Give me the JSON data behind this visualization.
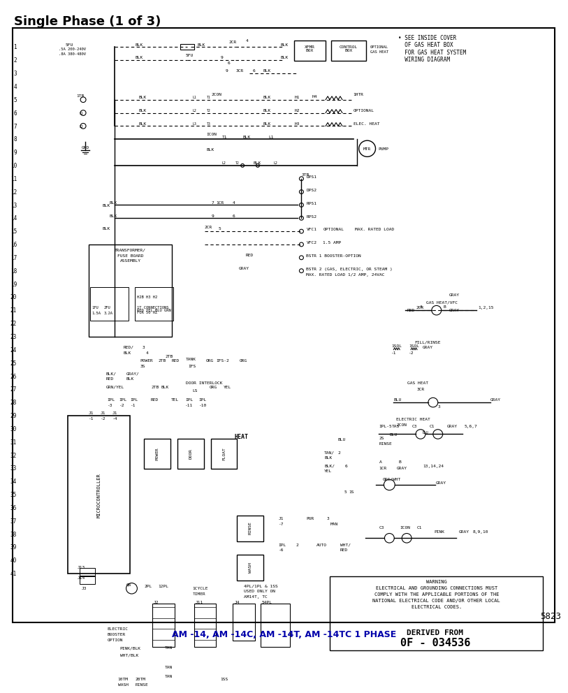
{
  "title": "Single Phase (1 of 3)",
  "subtitle": "AM -14, AM -14C, AM -14T, AM -14TC 1 PHASE",
  "page_number": "5823",
  "derived_from": "0F - 034536",
  "background_color": "#ffffff",
  "border_color": "#000000",
  "text_color": "#000000",
  "title_fontsize": 13,
  "body_fontsize": 5.5,
  "small_fontsize": 4.5,
  "line_numbers": [
    1,
    2,
    3,
    4,
    5,
    6,
    7,
    8,
    9,
    10,
    11,
    12,
    13,
    14,
    15,
    16,
    17,
    18,
    19,
    20,
    21,
    22,
    23,
    24,
    25,
    26,
    27,
    28,
    29,
    30,
    31,
    32,
    33,
    34,
    35,
    36,
    37,
    38,
    39,
    40,
    41
  ],
  "warning_text": "WARNING\nELECTRICAL AND GROUNDING CONNECTIONS MUST\nCOMPLY WITH THE APPLICABLE PORTIONS OF THE\nNATIONAL ELECTRICAL CODE AND/OR OTHER LOCAL\nELECTRICAL CODES.",
  "right_notes": "• SEE INSIDE COVER\n  OF GAS HEAT BOX\n  FOR GAS HEAT SYSTEM\n  WIRING DIAGRAM"
}
